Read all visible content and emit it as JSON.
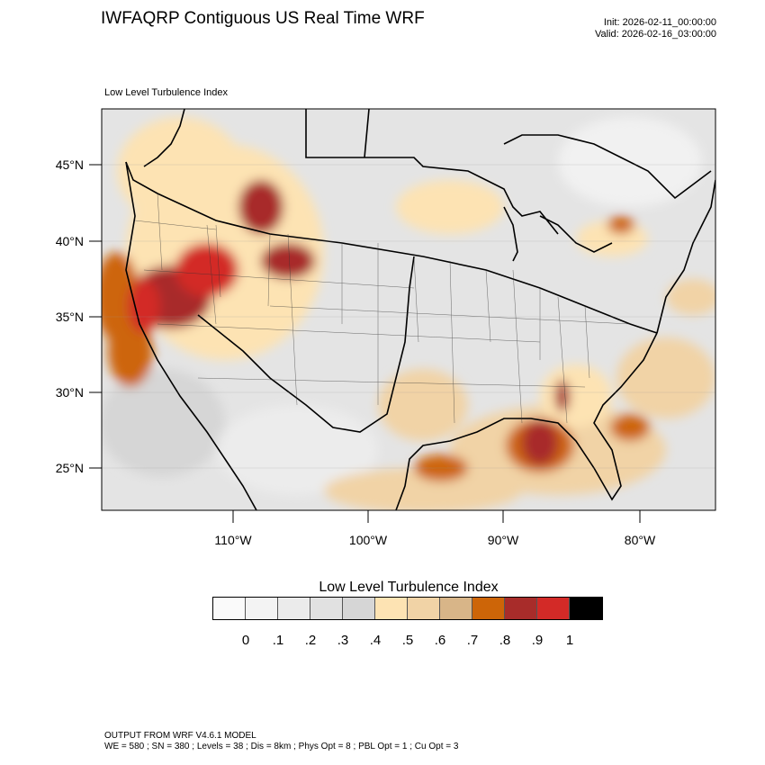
{
  "header": {
    "title": "IWFAQRP Contiguous US Real Time WRF",
    "init": "Init: 2026-02-11_00:00:00",
    "valid": "Valid: 2026-02-16_03:00:00"
  },
  "map": {
    "subtitle": "Low Level Turbulence Index",
    "lat_labels": [
      "45°N",
      "40°N",
      "35°N",
      "30°N",
      "25°N"
    ],
    "lon_labels": [
      "110°W",
      "100°W",
      "90°W",
      "80°W"
    ],
    "lon_range": [
      -119,
      -74.5
    ],
    "lat_range": [
      22,
      49.5
    ]
  },
  "colorbar": {
    "title": "Low Level Turbulence Index",
    "colors": [
      "#fafafa",
      "#f3f3f3",
      "#ebebeb",
      "#e1e1e1",
      "#d6d6d6",
      "#fde3b3",
      "#f1d3a6",
      "#d8b588",
      "#cd6508",
      "#a82c2a",
      "#d32a27",
      "#000000"
    ],
    "ticks": [
      "0",
      ".1",
      ".2",
      ".3",
      ".4",
      ".5",
      ".6",
      ".7",
      ".8",
      ".9",
      "1"
    ]
  },
  "footer": {
    "line1": "OUTPUT FROM WRF V4.6.1 MODEL",
    "line2": "WE = 580 ; SN = 380 ; Levels = 38 ; Dis = 8km ; Phys Opt = 8 ; PBL Opt = 1 ; Cu Opt = 3"
  }
}
